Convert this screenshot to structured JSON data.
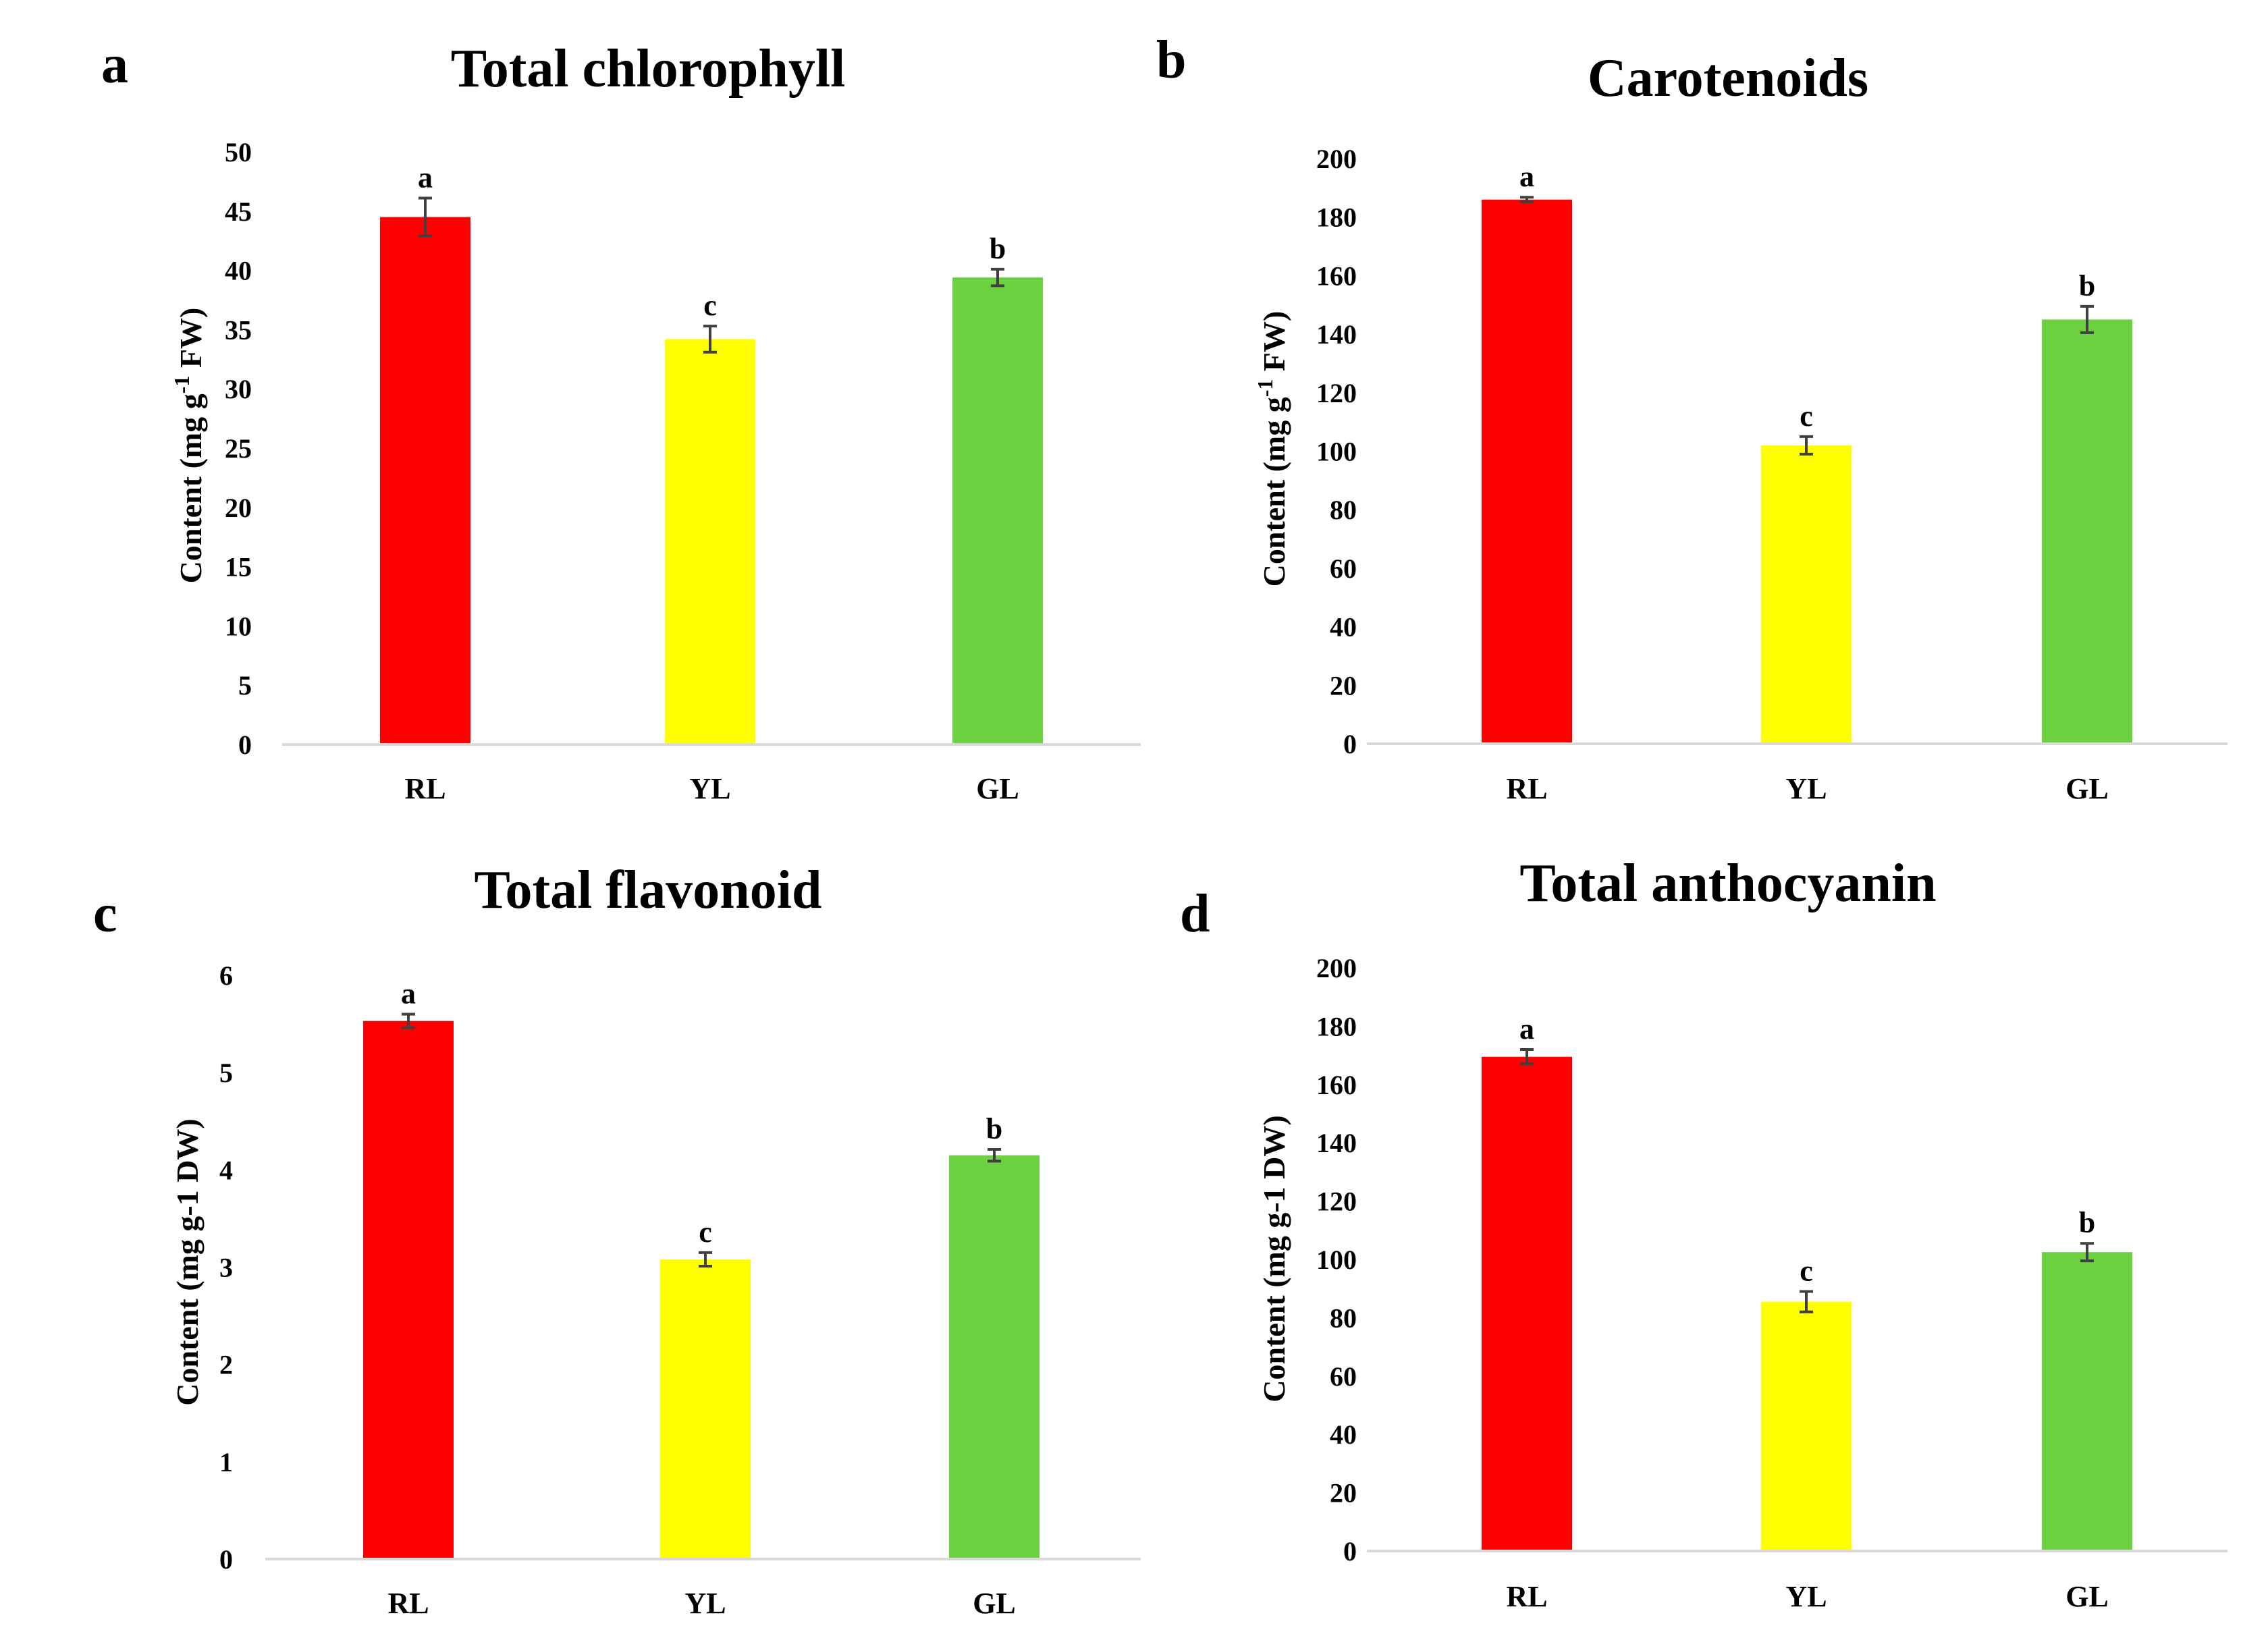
{
  "colors": {
    "RL": "#ff0000",
    "YL": "#ffff00",
    "GL": "#6cd141",
    "axis": "#d9d9d9",
    "errorbar": "#404040"
  },
  "chart_data": [
    {
      "panel": "a",
      "type": "bar",
      "title": "Total chlorophyll",
      "ylabel_main": "Content (mg g",
      "ylabel_sup": "-1",
      "ylabel_tail": " FW)",
      "categories": [
        "RL",
        "YL",
        "GL"
      ],
      "values": [
        44.5,
        34.2,
        39.4
      ],
      "errors": [
        1.6,
        1.1,
        0.7
      ],
      "significance": [
        "a",
        "c",
        "b"
      ],
      "yticks": [
        0,
        5,
        10,
        15,
        20,
        25,
        30,
        35,
        40,
        45,
        50
      ],
      "ylim": [
        0,
        50
      ]
    },
    {
      "panel": "b",
      "type": "bar",
      "title": "Carotenoids",
      "ylabel_main": "Content (mg g",
      "ylabel_sup": "-1",
      "ylabel_tail": " FW)",
      "categories": [
        "RL",
        "YL",
        "GL"
      ],
      "values": [
        186,
        102,
        145
      ],
      "errors": [
        0.8,
        3,
        4.5
      ],
      "significance": [
        "a",
        "c",
        "b"
      ],
      "yticks": [
        0,
        20,
        40,
        60,
        80,
        100,
        120,
        140,
        160,
        180,
        200
      ],
      "ylim": [
        0,
        200
      ]
    },
    {
      "panel": "c",
      "type": "bar",
      "title": "Total flavonoid",
      "ylabel_main": "Content (mg g-1 DW)",
      "ylabel_sup": "",
      "ylabel_tail": "",
      "categories": [
        "RL",
        "YL",
        "GL"
      ],
      "values": [
        5.53,
        3.08,
        4.15
      ],
      "errors": [
        0.07,
        0.07,
        0.06
      ],
      "significance": [
        "a",
        "c",
        "b"
      ],
      "yticks": [
        0,
        1,
        2,
        3,
        4,
        5,
        6
      ],
      "ylim": [
        0,
        6
      ]
    },
    {
      "panel": "d",
      "type": "bar",
      "title": "Total anthocyanin",
      "ylabel_main": "Content (mg g-1 DW)",
      "ylabel_sup": "",
      "ylabel_tail": "",
      "categories": [
        "RL",
        "YL",
        "GL"
      ],
      "values": [
        169.5,
        85.5,
        102.5
      ],
      "errors": [
        2.5,
        3.5,
        3
      ],
      "significance": [
        "a",
        "c",
        "b"
      ],
      "yticks": [
        0,
        20,
        40,
        60,
        80,
        100,
        120,
        140,
        160,
        180,
        200
      ],
      "ylim": [
        0,
        200
      ]
    }
  ]
}
